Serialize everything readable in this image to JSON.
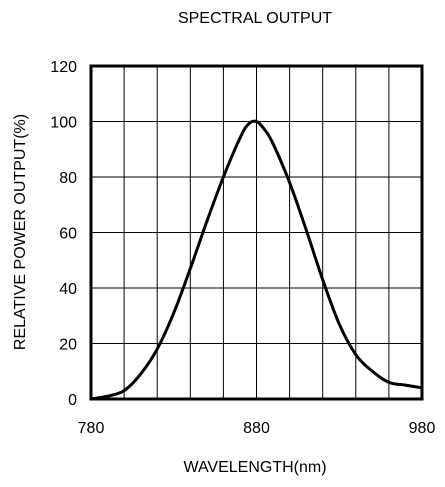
{
  "chart_data": {
    "type": "line",
    "title": "SPECTRAL OUTPUT",
    "xlabel": "WAVELENGTH(nm)",
    "ylabel": "RELATIVE POWER OUTPUT(%)",
    "xlim": [
      780,
      980
    ],
    "ylim": [
      0,
      120
    ],
    "xticks": [
      780,
      880,
      980
    ],
    "yticks": [
      0,
      20,
      40,
      60,
      80,
      100,
      120
    ],
    "grid": true,
    "series": [
      {
        "x": [
          780,
          790,
          800,
          810,
          820,
          830,
          840,
          850,
          860,
          870,
          875,
          880,
          885,
          890,
          900,
          910,
          920,
          930,
          940,
          950,
          960,
          970,
          980
        ],
        "values": [
          0,
          1,
          3,
          9,
          18,
          31,
          47,
          64,
          80,
          94,
          99,
          100,
          97,
          92,
          78,
          61,
          43,
          27,
          16,
          10,
          6,
          5,
          4
        ]
      }
    ]
  }
}
